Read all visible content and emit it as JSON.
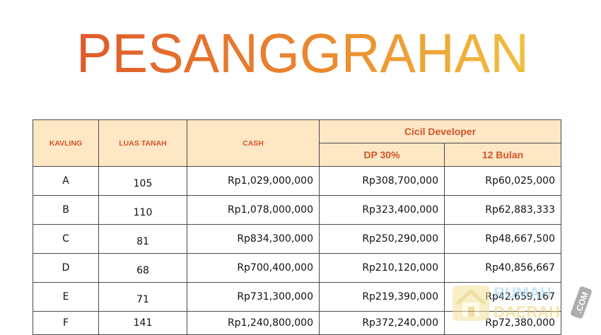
{
  "title": "PESANGGRAHAN",
  "colors": {
    "title_gradient": [
      "#e05a2c",
      "#eb8a2e",
      "#f0c040"
    ],
    "header_bg": "#fde7c5",
    "header_text": "#d4552b",
    "border": "#4a4a4a"
  },
  "table": {
    "headers": {
      "kavling": "KAVLING",
      "luas_tanah": "LUAS TANAH",
      "cash": "CASH",
      "cicil_developer": "Cicil Developer",
      "dp": "DP 30%",
      "bulan": "12 Bulan"
    },
    "rows": [
      {
        "kavling": "A",
        "luas": "105",
        "cash": "Rp1,029,000,000",
        "dp": "Rp308,700,000",
        "bulan": "Rp60,025,000"
      },
      {
        "kavling": "B",
        "luas": "110",
        "cash": "Rp1,078,000,000",
        "dp": "Rp323,400,000",
        "bulan": "Rp62,883,333"
      },
      {
        "kavling": "C",
        "luas": "81",
        "cash": "Rp834,300,000",
        "dp": "Rp250,290,000",
        "bulan": "Rp48,667,500"
      },
      {
        "kavling": "D",
        "luas": "68",
        "cash": "Rp700,400,000",
        "dp": "Rp210,120,000",
        "bulan": "Rp40,856,667"
      },
      {
        "kavling": "E",
        "luas": "71",
        "cash": "Rp731,300,000",
        "dp": "Rp219,390,000",
        "bulan": "Rp42,659,167"
      },
      {
        "kavling": "F",
        "luas": "141",
        "cash": "Rp1,240,800,000",
        "dp": "Rp372,240,000",
        "bulan": "Rp72,380,000"
      }
    ]
  },
  "watermark": {
    "line1": "RUMAH",
    "line2": "DAERAH",
    "suffix": ".COM",
    "icon": "house-icon"
  }
}
